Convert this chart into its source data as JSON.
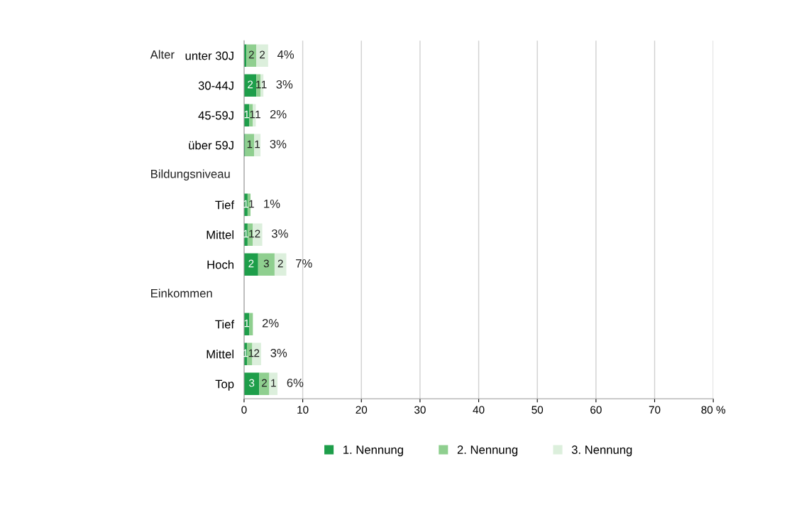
{
  "chart_data": {
    "type": "bar",
    "orientation": "horizontal",
    "stacked": true,
    "categories": [
      "unter 30J",
      "30-44J",
      "45-59J",
      "über 59J",
      null,
      "Tief",
      "Mittel",
      "Hoch",
      null,
      "Tief",
      "Mittel",
      "Top"
    ],
    "series": [
      {
        "name": "1. Nennung",
        "color": "#1e9e4a",
        "values": [
          0.4,
          2.1,
          0.9,
          0.2,
          null,
          0.6,
          0.6,
          2.4,
          null,
          0.9,
          0.5,
          2.6
        ],
        "value_labels": [
          null,
          "2",
          "1",
          null,
          null,
          "1",
          "1",
          "2",
          null,
          "1",
          "1",
          "3"
        ]
      },
      {
        "name": "2. Nennung",
        "color": "#8fcf8f",
        "values": [
          1.7,
          0.7,
          0.6,
          1.5,
          null,
          0.5,
          0.9,
          2.8,
          null,
          0.6,
          0.9,
          1.7
        ],
        "value_labels": [
          "2",
          "1",
          "1",
          "1",
          null,
          "1",
          "1",
          "3",
          null,
          null,
          "1",
          "2"
        ]
      },
      {
        "name": "3. Nennung",
        "color": "#dcefdc",
        "values": [
          2.0,
          0.5,
          0.5,
          1.1,
          null,
          null,
          1.6,
          2.0,
          null,
          null,
          1.5,
          1.4
        ],
        "value_labels": [
          "2",
          "1",
          "1",
          "1",
          null,
          null,
          "2",
          "2",
          null,
          null,
          "2",
          "1"
        ]
      }
    ],
    "totals": [
      "4%",
      "3%",
      "2%",
      "3%",
      null,
      "1%",
      "3%",
      "7%",
      null,
      "2%",
      "3%",
      "6%"
    ],
    "annotations": [
      "Alter",
      "Bildungsniveau",
      "Einkommen"
    ],
    "xlim": [
      0,
      80
    ],
    "xticks": [
      0,
      10,
      20,
      30,
      40,
      50,
      60,
      70,
      {
        "value": 80,
        "label": "80 %"
      }
    ],
    "grid": "x",
    "legend": "bottom"
  }
}
